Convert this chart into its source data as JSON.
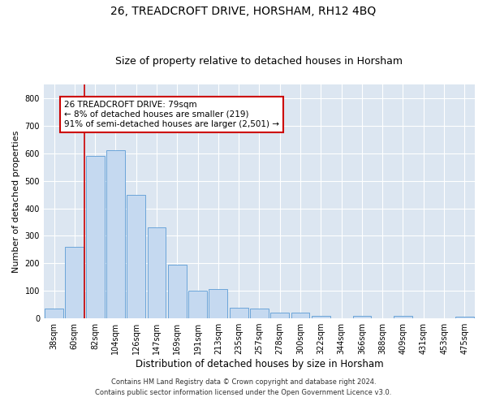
{
  "title": "26, TREADCROFT DRIVE, HORSHAM, RH12 4BQ",
  "subtitle": "Size of property relative to detached houses in Horsham",
  "xlabel": "Distribution of detached houses by size in Horsham",
  "ylabel": "Number of detached properties",
  "categories": [
    "38sqm",
    "60sqm",
    "82sqm",
    "104sqm",
    "126sqm",
    "147sqm",
    "169sqm",
    "191sqm",
    "213sqm",
    "235sqm",
    "257sqm",
    "278sqm",
    "300sqm",
    "322sqm",
    "344sqm",
    "366sqm",
    "388sqm",
    "409sqm",
    "431sqm",
    "453sqm",
    "475sqm"
  ],
  "values": [
    35,
    260,
    590,
    610,
    450,
    330,
    195,
    100,
    105,
    40,
    35,
    20,
    20,
    10,
    0,
    8,
    0,
    8,
    0,
    0,
    5
  ],
  "bar_color": "#c5d9f0",
  "bar_edge_color": "#5b9bd5",
  "vline_color": "#cc0000",
  "annotation_text": "26 TREADCROFT DRIVE: 79sqm\n← 8% of detached houses are smaller (219)\n91% of semi-detached houses are larger (2,501) →",
  "annotation_box_color": "#ffffff",
  "annotation_box_edge_color": "#cc0000",
  "annotation_fontsize": 7.5,
  "ylim": [
    0,
    850
  ],
  "yticks": [
    0,
    100,
    200,
    300,
    400,
    500,
    600,
    700,
    800
  ],
  "plot_bg_color": "#dce6f1",
  "grid_color": "#ffffff",
  "title_fontsize": 10,
  "subtitle_fontsize": 9,
  "xlabel_fontsize": 8.5,
  "ylabel_fontsize": 8,
  "tick_fontsize": 7,
  "footer_line1": "Contains HM Land Registry data © Crown copyright and database right 2024.",
  "footer_line2": "Contains public sector information licensed under the Open Government Licence v3.0.",
  "footer_fontsize": 6.0,
  "vline_x": 1.5
}
